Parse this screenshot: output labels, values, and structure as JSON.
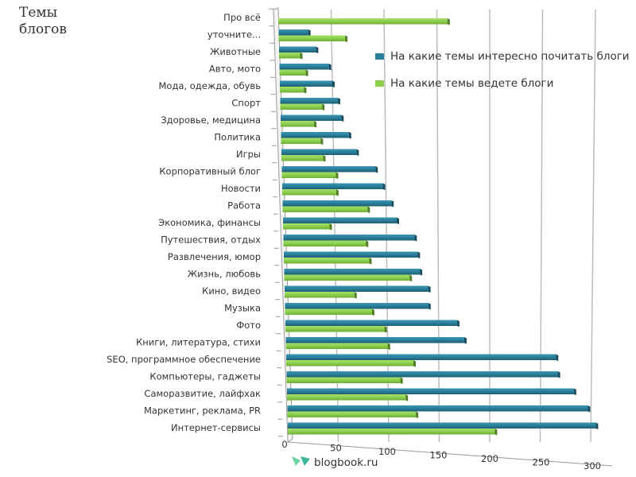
{
  "chart_data": {
    "type": "bar",
    "orientation": "horizontal",
    "style": "3d-clustered",
    "title": "Темы\nблогов",
    "xlabel": "",
    "ylabel": "",
    "xlim": [
      0,
      300
    ],
    "x_ticks": [
      "0",
      "50",
      "100",
      "150",
      "200",
      "250",
      "300"
    ],
    "grid": true,
    "legend_position": "right",
    "categories": [
      "Про всё",
      "уточните...",
      "Животные",
      "Авто, мото",
      "Мода, одежда, обувь",
      "Спорт",
      "Здоровье, медицина",
      "Политика",
      "Игры",
      "Корпоративный блог",
      "Новости",
      "Работа",
      "Экономика, финансы",
      "Путешествия, отдых",
      "Развлечения, юмор",
      "Жизнь, любовь",
      "Кино, видео",
      "Музыка",
      "Фото",
      "Книги, литература, стихи",
      "SEO, программное обеспечение",
      "Компьютеры, гаджеты",
      "Саморазвитие, лайфхак",
      "Маркетинг, реклама, PR",
      "Интернет-сервисы"
    ],
    "series": [
      {
        "name": "На какие темы интересно почитать блоги",
        "color": "#2a7f9a",
        "values": [
          0,
          28,
          35,
          47,
          50,
          55,
          58,
          65,
          72,
          90,
          97,
          105,
          110,
          127,
          130,
          132,
          140,
          140,
          168,
          175,
          265,
          267,
          283,
          297,
          305
        ]
      },
      {
        "name": "На какие темы ведете блоги",
        "color": "#8ccf4d",
        "values": [
          160,
          63,
          20,
          25,
          23,
          40,
          32,
          38,
          40,
          52,
          52,
          82,
          45,
          80,
          83,
          122,
          68,
          85,
          97,
          100,
          125,
          112,
          117,
          127,
          205
        ]
      }
    ]
  },
  "watermark": {
    "icon": "blogbook-logo-icon",
    "text": "blogbook.ru",
    "color": "#3cb89a"
  }
}
